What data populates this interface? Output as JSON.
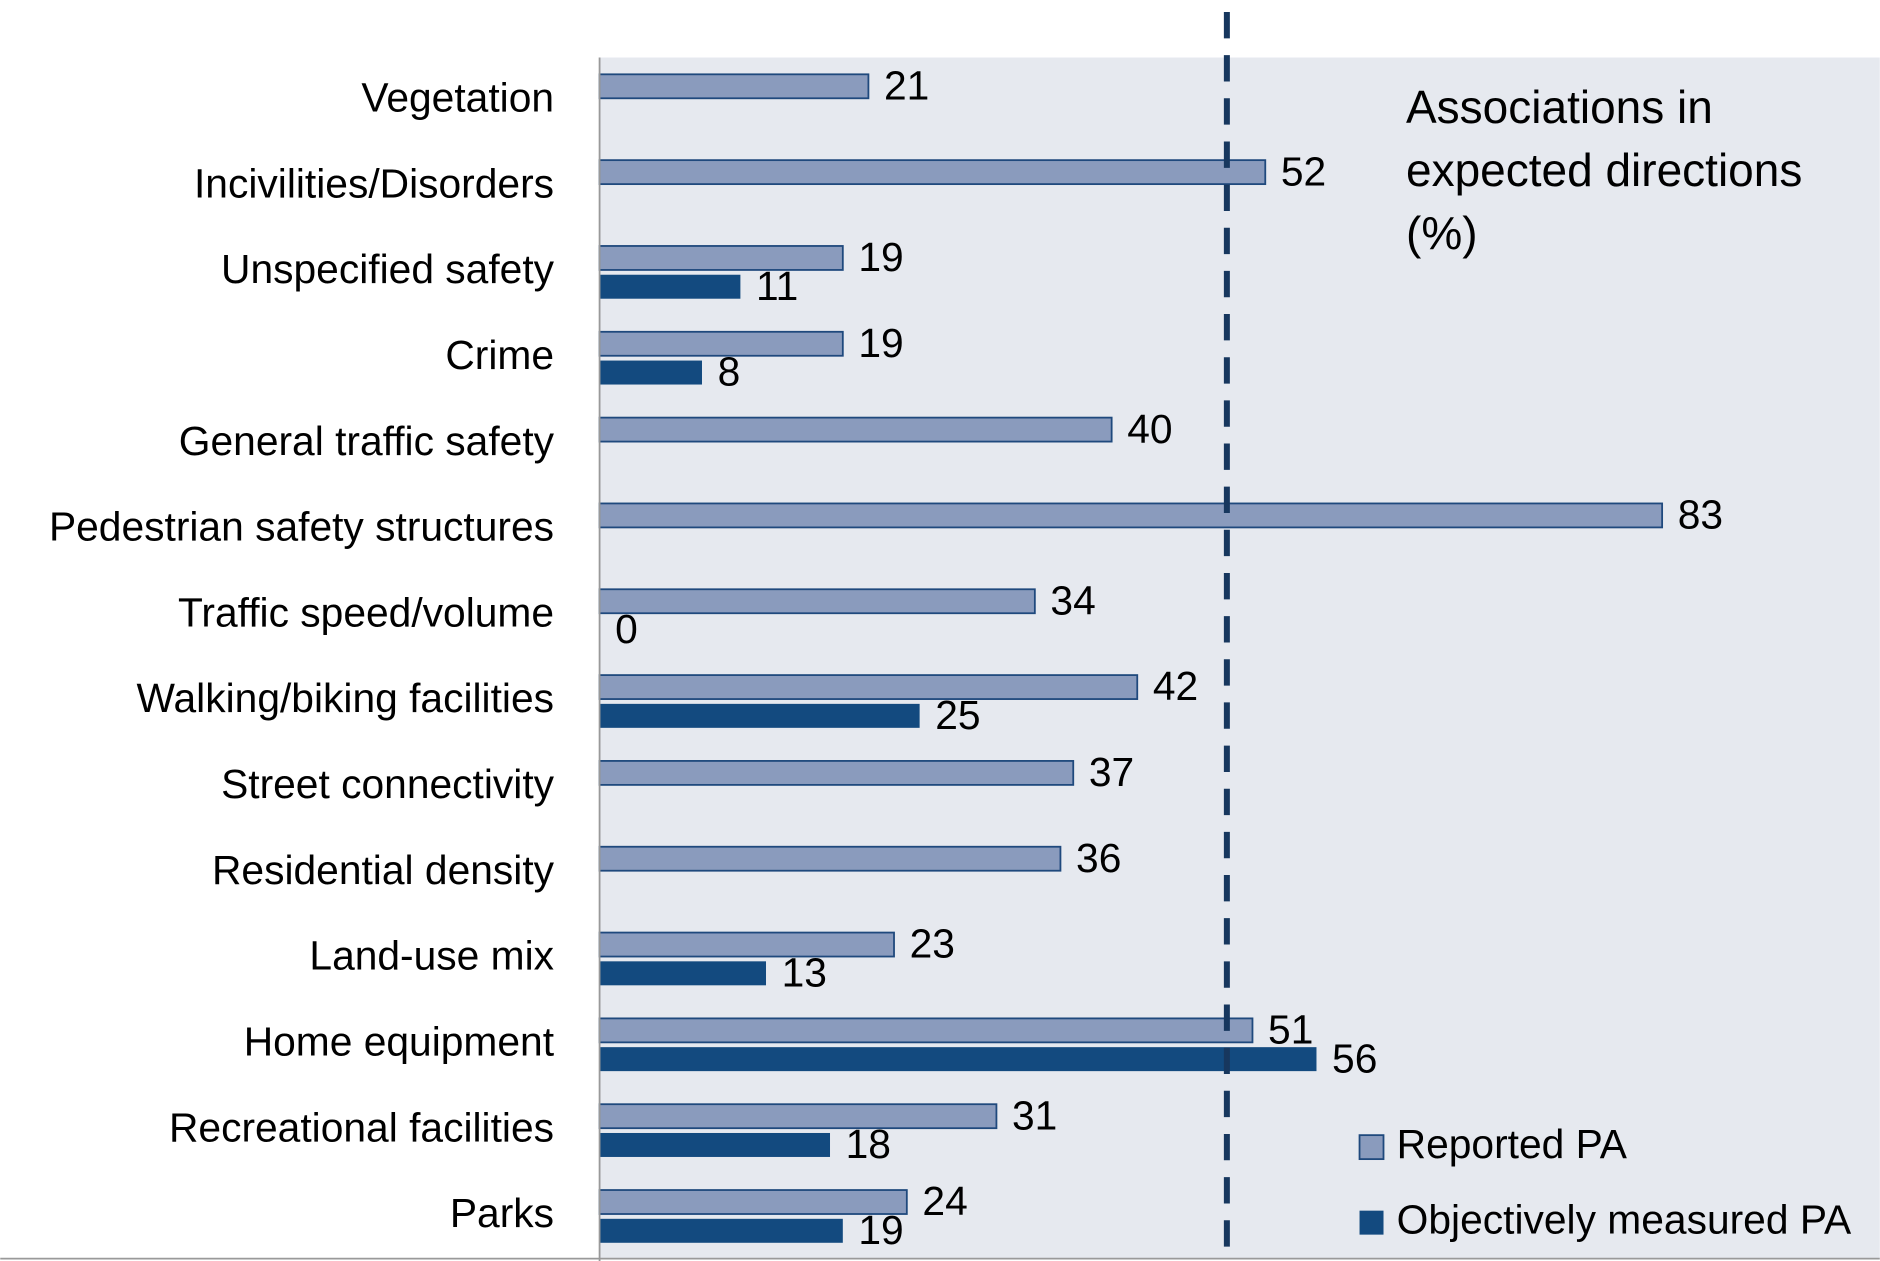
{
  "chart_data": {
    "type": "bar",
    "orientation": "horizontal",
    "annotation": "Associations in expected directions (%)",
    "categories": [
      "Vegetation",
      "Incivilities/Disorders",
      "Unspecified safety",
      "Crime",
      "General traffic safety",
      "Pedestrian safety structures",
      "Traffic speed/volume",
      "Walking/biking facilities",
      "Street connectivity",
      "Residential density",
      "Land-use mix",
      "Home equipment",
      "Recreational facilities",
      "Parks"
    ],
    "series": [
      {
        "name": "Reported PA",
        "color": "#8a9bbd",
        "values": [
          21,
          52,
          19,
          19,
          40,
          83,
          34,
          42,
          37,
          36,
          23,
          51,
          31,
          24
        ]
      },
      {
        "name": "Objectively measured PA",
        "color": "#134a7f",
        "values": [
          null,
          null,
          11,
          8,
          null,
          null,
          0,
          25,
          null,
          null,
          13,
          56,
          18,
          19
        ]
      }
    ],
    "xlim": [
      0,
      100
    ],
    "reference_line": 49,
    "legend": "lower right"
  }
}
